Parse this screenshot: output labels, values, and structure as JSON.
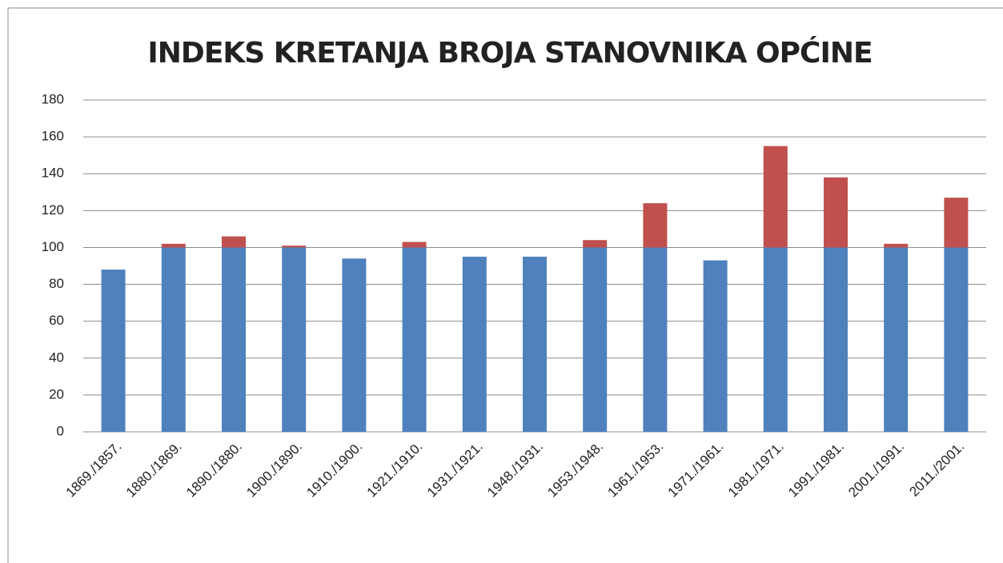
{
  "chart_data": {
    "type": "stacked_bar",
    "title": "INDEKS KRETANJA BROJA STANOVNIKA OPĆINE",
    "categories": [
      "1869./1857.",
      "1880./1869.",
      "1890./1880.",
      "1900./1890.",
      "1910./1900.",
      "1921./1910.",
      "1931./1921.",
      "1948./1931.",
      "1953./1948.",
      "1961./1953.",
      "1971./1961.",
      "1981./1971.",
      "1991./1981.",
      "2001./1991.",
      "2011./2001."
    ],
    "series": [
      {
        "color": "#4f81bd",
        "values": [
          88,
          100,
          100,
          100,
          94,
          100,
          95,
          95,
          100,
          100,
          93,
          100,
          100,
          100,
          100
        ]
      },
      {
        "color": "#c0504d",
        "values": [
          0,
          2,
          6,
          1,
          0,
          3,
          0,
          0,
          4,
          24,
          0,
          55,
          38,
          2,
          27
        ]
      }
    ],
    "ylim": [
      0,
      180
    ],
    "yticks": [
      0,
      20,
      40,
      60,
      80,
      100,
      120,
      140,
      160,
      180
    ],
    "grid": true
  }
}
